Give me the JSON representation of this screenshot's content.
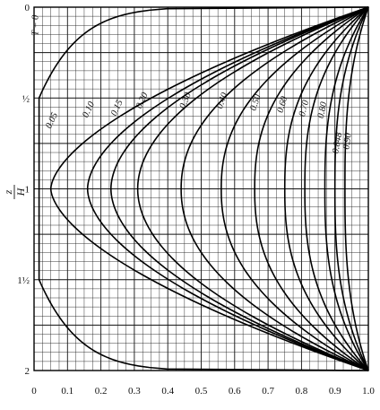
{
  "chart_data": {
    "type": "line",
    "title": "",
    "xlabel": "",
    "ylabel": {
      "numerator": "z",
      "denominator": "H"
    },
    "xlim": [
      0,
      1.0
    ],
    "ylim": [
      0,
      2
    ],
    "y_inverted": true,
    "grid": true,
    "x_ticks": [
      "0",
      "0.1",
      "0.2",
      "0.3",
      "0.4",
      "0.5",
      "0.6",
      "0.7",
      "0.8",
      "0.9",
      "1.0"
    ],
    "y_ticks": [
      {
        "value": 0,
        "label": "0"
      },
      {
        "value": 0.5,
        "label": "½"
      },
      {
        "value": 1,
        "label": "1"
      },
      {
        "value": 1.5,
        "label": "1½"
      },
      {
        "value": 2,
        "label": "2"
      }
    ],
    "series": [
      {
        "name": "T = 0",
        "peak_x": 0.015
      },
      {
        "name": "0.05",
        "peak_x": 0.05
      },
      {
        "name": "0.10",
        "peak_x": 0.16
      },
      {
        "name": "0.15",
        "peak_x": 0.23
      },
      {
        "name": "0.20",
        "peak_x": 0.31
      },
      {
        "name": "0.30",
        "peak_x": 0.44
      },
      {
        "name": "0.40",
        "peak_x": 0.56
      },
      {
        "name": "0.50",
        "peak_x": 0.66
      },
      {
        "name": "0.60",
        "peak_x": 0.75
      },
      {
        "name": "0.70",
        "peak_x": 0.81
      },
      {
        "name": "0.80",
        "peak_x": 0.87
      },
      {
        "name": "0.848",
        "peak_x": 0.9
      },
      {
        "name": "0.90",
        "peak_x": 0.93
      }
    ]
  }
}
